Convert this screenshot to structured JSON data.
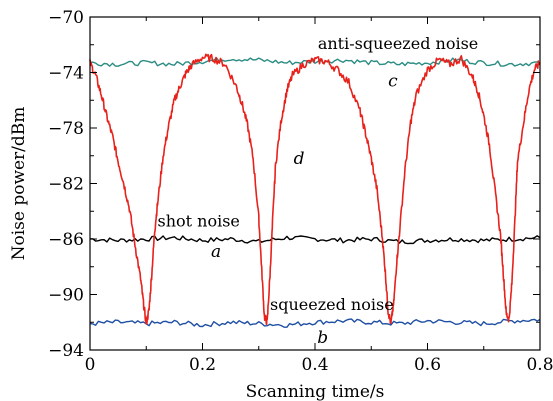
{
  "chart_data": {
    "type": "line",
    "xlabel": "Scanning time/s",
    "ylabel": "Noise power/dBm",
    "xlim": [
      0,
      0.8
    ],
    "ylim": [
      -94,
      -70
    ],
    "x_ticks": [
      0,
      0.2,
      0.4,
      0.6,
      0.8
    ],
    "x_tick_labels": [
      "0",
      "0.2",
      "0.4",
      "0.6",
      "0.8"
    ],
    "y_ticks": [
      -94,
      -90,
      -86,
      -82,
      -78,
      -74,
      -70
    ],
    "y_tick_labels": [
      "−94",
      "−90",
      "−86",
      "−82",
      "−78",
      "−74",
      "−70"
    ],
    "grid": false,
    "series": [
      {
        "letter": "a",
        "label": "shot noise",
        "color": "#000000",
        "x": [
          0,
          0.05,
          0.1,
          0.15,
          0.2,
          0.25,
          0.3,
          0.35,
          0.4,
          0.45,
          0.5,
          0.55,
          0.6,
          0.65,
          0.7,
          0.75,
          0.8
        ],
        "y": [
          -86.0,
          -86.1,
          -86.0,
          -85.9,
          -86.1,
          -86.0,
          -86.2,
          -85.9,
          -86.0,
          -86.1,
          -86.0,
          -86.2,
          -86.1,
          -86.0,
          -86.1,
          -86.0,
          -85.9
        ]
      },
      {
        "letter": "b",
        "label": "squeezed noise",
        "color": "#1f4fa3",
        "x": [
          0,
          0.05,
          0.1,
          0.15,
          0.2,
          0.25,
          0.3,
          0.35,
          0.4,
          0.45,
          0.5,
          0.55,
          0.6,
          0.65,
          0.7,
          0.75,
          0.8
        ],
        "y": [
          -92.1,
          -92.0,
          -92.1,
          -92.0,
          -92.2,
          -92.0,
          -92.1,
          -92.2,
          -92.0,
          -91.9,
          -92.0,
          -92.1,
          -91.9,
          -92.0,
          -92.1,
          -91.9,
          -91.8
        ]
      },
      {
        "letter": "c",
        "label": "anti-squeezed noise",
        "color": "#2a8c82",
        "x": [
          0,
          0.05,
          0.1,
          0.15,
          0.2,
          0.25,
          0.3,
          0.35,
          0.4,
          0.45,
          0.5,
          0.55,
          0.6,
          0.65,
          0.7,
          0.75,
          0.8
        ],
        "y": [
          -73.3,
          -73.4,
          -73.3,
          -73.4,
          -73.2,
          -73.0,
          -73.1,
          -73.3,
          -73.2,
          -73.1,
          -73.3,
          -73.4,
          -73.3,
          -73.1,
          -73.3,
          -73.4,
          -73.3
        ]
      },
      {
        "letter": "d",
        "label": "",
        "color": "#e8211b",
        "x": [
          0,
          0.01,
          0.02,
          0.03,
          0.04,
          0.05,
          0.06,
          0.07,
          0.08,
          0.09,
          0.095,
          0.1,
          0.105,
          0.11,
          0.115,
          0.12,
          0.13,
          0.14,
          0.15,
          0.16,
          0.17,
          0.18,
          0.2,
          0.22,
          0.24,
          0.26,
          0.27,
          0.28,
          0.29,
          0.3,
          0.305,
          0.31,
          0.315,
          0.32,
          0.325,
          0.33,
          0.34,
          0.35,
          0.36,
          0.38,
          0.4,
          0.42,
          0.44,
          0.46,
          0.48,
          0.49,
          0.5,
          0.51,
          0.52,
          0.525,
          0.53,
          0.535,
          0.54,
          0.545,
          0.55,
          0.56,
          0.57,
          0.58,
          0.6,
          0.62,
          0.64,
          0.66,
          0.68,
          0.69,
          0.7,
          0.71,
          0.72,
          0.73,
          0.735,
          0.74,
          0.745,
          0.75,
          0.755,
          0.76,
          0.77,
          0.78,
          0.79,
          0.8
        ],
        "y": [
          -73.3,
          -74.2,
          -75.6,
          -77.2,
          -78.6,
          -80.4,
          -82.0,
          -83.8,
          -86.4,
          -88.9,
          -90.6,
          -92.1,
          -91.1,
          -88.4,
          -85.4,
          -83.5,
          -80.0,
          -77.8,
          -76.0,
          -75.0,
          -74.1,
          -73.5,
          -72.9,
          -73.0,
          -73.4,
          -75.0,
          -76.2,
          -77.8,
          -80.2,
          -84.5,
          -88.0,
          -91.6,
          -92.0,
          -88.6,
          -84.4,
          -80.6,
          -77.4,
          -75.3,
          -74.2,
          -73.4,
          -73.1,
          -73.2,
          -73.8,
          -74.7,
          -76.8,
          -78.4,
          -80.2,
          -82.4,
          -86.0,
          -88.4,
          -91.2,
          -92.1,
          -90.6,
          -87.8,
          -85.6,
          -81.0,
          -77.6,
          -75.6,
          -73.8,
          -73.1,
          -73.4,
          -73.0,
          -74.3,
          -75.4,
          -77.1,
          -79.2,
          -82.5,
          -85.8,
          -88.6,
          -91.4,
          -91.8,
          -89.2,
          -85.0,
          -80.4,
          -77.8,
          -75.3,
          -73.8,
          -73.3
        ]
      }
    ],
    "annotations": [
      {
        "text": "anti-squeezed noise",
        "x": 0.405,
        "y": -72.3
      },
      {
        "text": "shot noise",
        "x": 0.12,
        "y": -85.1
      },
      {
        "text": "squeezed noise",
        "x": 0.32,
        "y": -91.1
      }
    ],
    "series_letters": [
      {
        "text": "c",
        "x": 0.53,
        "y": -75.0
      },
      {
        "text": "d",
        "x": 0.362,
        "y": -80.6
      },
      {
        "text": "a",
        "x": 0.215,
        "y": -87.3
      },
      {
        "text": "b",
        "x": 0.404,
        "y": -93.5
      }
    ]
  }
}
